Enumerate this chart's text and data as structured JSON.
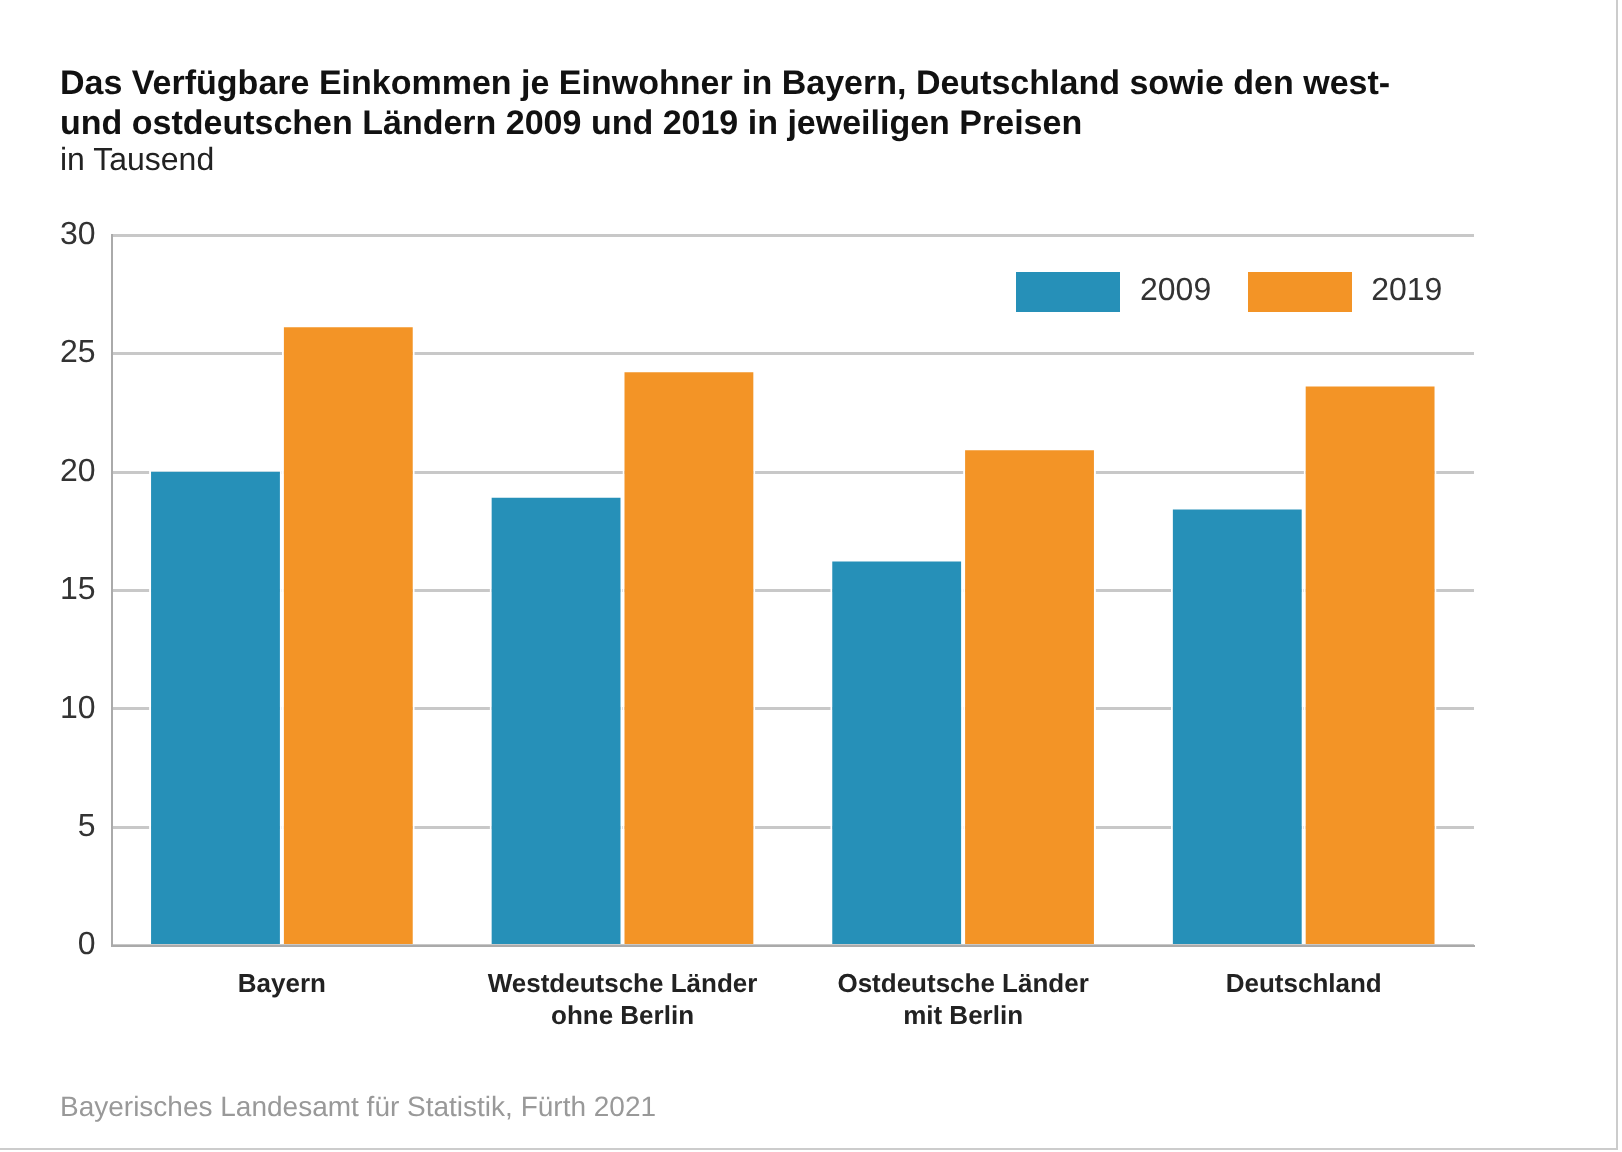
{
  "chart_data": {
    "type": "bar",
    "title": "Das Verfügbare Einkommen je Einwohner in Bayern, Deutschland sowie den west- und ostdeutschen Ländern 2009 und 2019 in jeweiligen Preisen",
    "subtitle": "in Tausend",
    "categories": [
      "Bayern",
      "Westdeutsche Länder ohne Berlin",
      "Ostdeutsche Länder mit Berlin",
      "Deutschland"
    ],
    "series": [
      {
        "name": "2009",
        "color": "#2690b8",
        "values": [
          20.1,
          19.0,
          16.3,
          18.5
        ]
      },
      {
        "name": "2019",
        "color": "#f39426",
        "values": [
          26.2,
          24.3,
          21.0,
          23.7
        ]
      }
    ],
    "ylim": [
      0,
      30
    ],
    "yticks": [
      0,
      5,
      10,
      15,
      20,
      25,
      30
    ],
    "grid": "y",
    "legend": "top right",
    "annotations": [
      "Bayerisches Landesamt für Statistik, Fürth 2021"
    ]
  }
}
